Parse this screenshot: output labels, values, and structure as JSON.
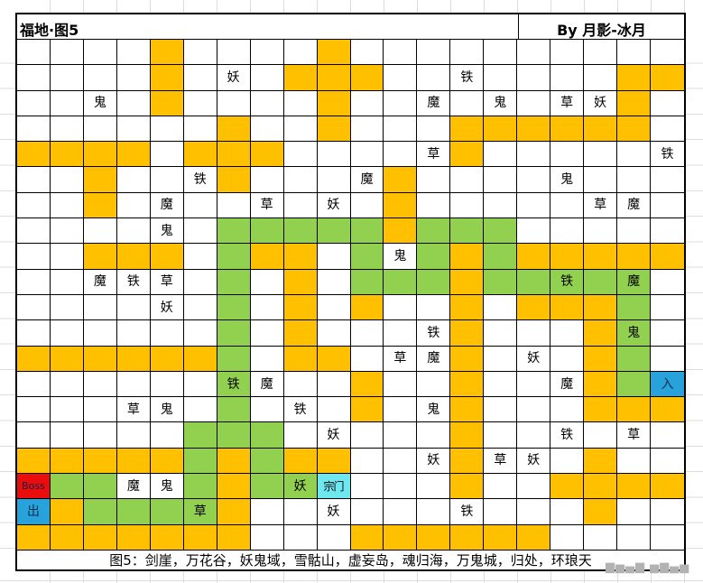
{
  "header": {
    "title": "福地·图5",
    "byline": "By 月影-冰月"
  },
  "caption": "图5：剑崖，万花谷，妖鬼域，雪骷山，虚妄岛，魂归海，万鬼城，归处，环琅天",
  "watermark": "▆▅▄▆ ▅▆▄▅",
  "colors": {
    "orange": "#FFC000",
    "green": "#92D050",
    "red": "#EA0D0D",
    "blue": "#27A2DB",
    "cyan": "#6FE7EF",
    "gridline": "#000000",
    "margin_line": "#DCDCDC"
  },
  "special_labels": {
    "boss": "Boss",
    "exit": "出",
    "entrance": "入",
    "sect": "宗门"
  },
  "grid": {
    "rows": 20,
    "cols": 20,
    "legend": {
      ".": "empty",
      "O": "orange-path",
      "G": "green-path",
      "R:": "red-bg",
      "B:": "blue-bg",
      "C:": "cyan-bg",
      "G:": "green-bg-label"
    },
    "cells": [
      [
        ".",
        ".",
        ".",
        ".",
        "O",
        ".",
        ".",
        ".",
        ".",
        "O",
        ".",
        ".",
        ".",
        ".",
        ".",
        ".",
        ".",
        ".",
        ".",
        "."
      ],
      [
        ".",
        ".",
        ".",
        ".",
        "O",
        ".",
        "妖",
        ".",
        "O",
        "O",
        "O",
        ".",
        ".",
        "铁",
        ".",
        ".",
        ".",
        ".",
        "O",
        "O"
      ],
      [
        ".",
        ".",
        "鬼",
        ".",
        "O",
        ".",
        ".",
        ".",
        ".",
        "O",
        ".",
        ".",
        "魔",
        ".",
        "鬼",
        ".",
        "草",
        "妖",
        "O",
        "."
      ],
      [
        ".",
        ".",
        ".",
        ".",
        ".",
        ".",
        "O",
        ".",
        ".",
        "O",
        ".",
        ".",
        ".",
        "O",
        "O",
        "O",
        "O",
        "O",
        "O",
        "."
      ],
      [
        "O",
        "O",
        "O",
        "O",
        ".",
        "O",
        "O",
        "O",
        ".",
        ".",
        ".",
        ".",
        "草",
        "O",
        ".",
        ".",
        ".",
        ".",
        ".",
        "铁"
      ],
      [
        ".",
        ".",
        "O",
        ".",
        ".",
        "铁",
        "O",
        ".",
        ".",
        ".",
        "魔",
        "O",
        ".",
        ".",
        ".",
        ".",
        "鬼",
        ".",
        ".",
        "."
      ],
      [
        ".",
        ".",
        "O",
        ".",
        "魔",
        ".",
        ".",
        "草",
        ".",
        "妖",
        ".",
        "O",
        ".",
        ".",
        ".",
        ".",
        ".",
        "草",
        "魔",
        "."
      ],
      [
        ".",
        ".",
        ".",
        ".",
        "鬼",
        ".",
        "G",
        "G",
        "G",
        "G",
        "G",
        "O",
        "G",
        "G",
        "G",
        ".",
        ".",
        ".",
        ".",
        "."
      ],
      [
        ".",
        ".",
        "O",
        "O",
        "O",
        ".",
        "G",
        "O",
        "O",
        ".",
        "G",
        "鬼",
        "G",
        "O",
        "G",
        "O",
        "O",
        "O",
        "O",
        "O"
      ],
      [
        ".",
        ".",
        "魔",
        "铁",
        "草",
        ".",
        "G",
        ".",
        "O",
        ".",
        "G",
        "G",
        "G",
        "O",
        "G",
        "G",
        "G:铁",
        "G",
        "G:魔",
        "."
      ],
      [
        ".",
        ".",
        ".",
        ".",
        "妖",
        ".",
        "G",
        ".",
        "O",
        ".",
        "O",
        ".",
        ".",
        "O",
        ".",
        "O",
        "O",
        "O",
        "G",
        "."
      ],
      [
        ".",
        ".",
        ".",
        ".",
        ".",
        ".",
        "G",
        ".",
        "O",
        ".",
        ".",
        ".",
        "铁",
        "O",
        ".",
        ".",
        ".",
        "O",
        "G:鬼",
        "."
      ],
      [
        "O",
        "O",
        "O",
        "O",
        "O",
        "O",
        "G",
        ".",
        "O",
        "O",
        ".",
        "草",
        "魔",
        "O",
        ".",
        "妖",
        ".",
        "O",
        "G",
        "."
      ],
      [
        ".",
        ".",
        ".",
        ".",
        ".",
        ".",
        "G:铁",
        "魔",
        ".",
        ".",
        "O",
        ".",
        ".",
        "O",
        ".",
        ".",
        "魔",
        "O",
        "G",
        "B:入"
      ],
      [
        ".",
        ".",
        ".",
        "草",
        "鬼",
        ".",
        "G",
        ".",
        "铁",
        ".",
        "O",
        ".",
        "鬼",
        "O",
        ".",
        ".",
        ".",
        "O",
        "O",
        "O"
      ],
      [
        ".",
        ".",
        ".",
        ".",
        ".",
        "G",
        "G",
        "G",
        ".",
        "妖",
        ".",
        ".",
        ".",
        "O",
        ".",
        ".",
        "铁",
        ".",
        "草",
        "."
      ],
      [
        "O",
        "O",
        "O",
        "O",
        "O",
        "G",
        "O",
        "G",
        "O",
        "O",
        ".",
        ".",
        "妖",
        "O",
        "草",
        "妖",
        ".",
        "O",
        ".",
        "."
      ],
      [
        "R:Boss",
        "G",
        "G",
        "魔",
        "鬼",
        "G",
        "O",
        "G",
        "G:妖",
        "C:宗门",
        ".",
        ".",
        ".",
        "O",
        ".",
        ".",
        "O",
        "O",
        "O",
        "O"
      ],
      [
        "B:出",
        "O",
        "G",
        "G",
        "G",
        "G:草",
        "O",
        ".",
        ".",
        "妖",
        ".",
        ".",
        ".",
        "铁",
        ".",
        ".",
        ".",
        "O",
        ".",
        "."
      ],
      [
        "O",
        "O",
        "O",
        "O",
        "O",
        "O",
        "O",
        ".",
        ".",
        ".",
        "O",
        "O",
        "O",
        "O",
        "O",
        "O",
        ".",
        ".",
        ".",
        "."
      ]
    ]
  }
}
